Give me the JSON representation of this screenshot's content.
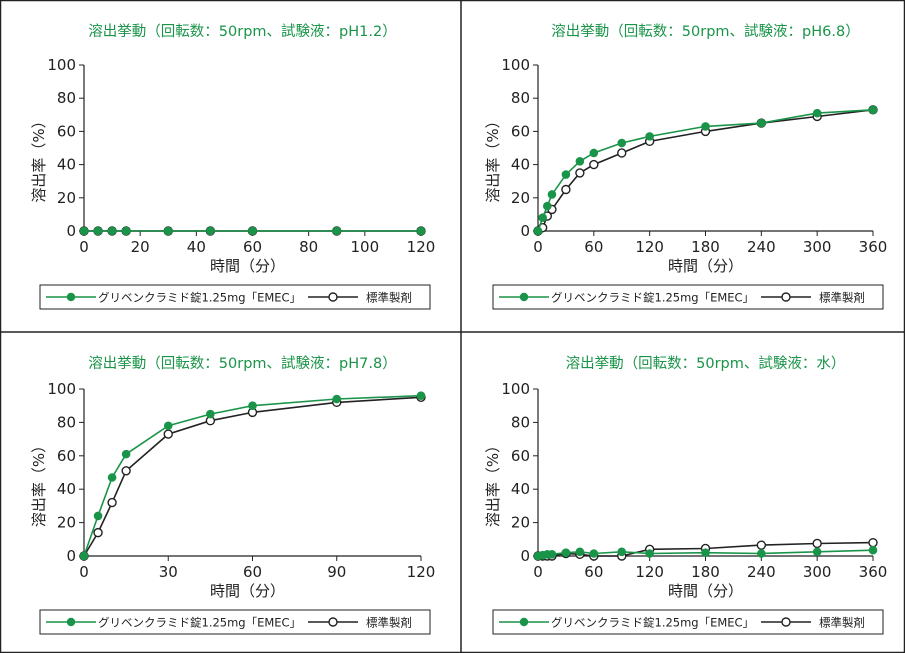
{
  "colors": {
    "test": "#1a9449",
    "reference": "#222222",
    "title": "#1a9449",
    "border": "#222222"
  },
  "legend": {
    "test_label": "グリベンクラミド錠1.25mg「EMEC」",
    "ref_label": "標準製剤"
  },
  "chart_data": [
    {
      "type": "line",
      "title": "溶出挙動（回転数：50rpm、試験液：pH1.2）",
      "xlabel": "時間（分）",
      "ylabel": "溶出率（%）",
      "xlim": [
        0,
        120
      ],
      "ylim": [
        0,
        100
      ],
      "xticks": [
        0,
        20,
        40,
        60,
        80,
        100,
        120
      ],
      "yticks": [
        0,
        20,
        40,
        60,
        80,
        100
      ],
      "legend_position": "bottom",
      "series": [
        {
          "name": "グリベンクラミド錠1.25mg「EMEC」",
          "marker": "filled",
          "x": [
            0,
            5,
            10,
            15,
            30,
            45,
            60,
            90,
            120
          ],
          "y": [
            0,
            0,
            0,
            0,
            0,
            0,
            0,
            0,
            0
          ]
        },
        {
          "name": "標準製剤",
          "marker": "open",
          "x": [
            0,
            5,
            10,
            15,
            30,
            45,
            60,
            90,
            120
          ],
          "y": [
            0,
            0,
            0,
            0,
            0,
            0,
            0,
            0,
            0
          ]
        }
      ]
    },
    {
      "type": "line",
      "title": "溶出挙動（回転数：50rpm、試験液：pH6.8）",
      "xlabel": "時間（分）",
      "ylabel": "溶出率（%）",
      "xlim": [
        0,
        360
      ],
      "ylim": [
        0,
        100
      ],
      "xticks": [
        0,
        60,
        120,
        180,
        240,
        300,
        360
      ],
      "yticks": [
        0,
        20,
        40,
        60,
        80,
        100
      ],
      "legend_position": "bottom",
      "series": [
        {
          "name": "グリベンクラミド錠1.25mg「EMEC」",
          "marker": "filled",
          "x": [
            0,
            5,
            10,
            15,
            30,
            45,
            60,
            90,
            120,
            180,
            240,
            300,
            360
          ],
          "y": [
            0,
            8,
            15,
            22,
            34,
            42,
            47,
            53,
            57,
            63,
            65,
            71,
            73
          ]
        },
        {
          "name": "標準製剤",
          "marker": "open",
          "x": [
            0,
            5,
            10,
            15,
            30,
            45,
            60,
            90,
            120,
            180,
            240,
            300,
            360
          ],
          "y": [
            0,
            2,
            9,
            13,
            25,
            35,
            40,
            47,
            54,
            60,
            65,
            69,
            73
          ]
        }
      ]
    },
    {
      "type": "line",
      "title": "溶出挙動（回転数：50rpm、試験液：pH7.8）",
      "xlabel": "時間（分）",
      "ylabel": "溶出率（%）",
      "xlim": [
        0,
        120
      ],
      "ylim": [
        0,
        100
      ],
      "xticks": [
        0,
        30,
        60,
        90,
        120
      ],
      "yticks": [
        0,
        20,
        40,
        60,
        80,
        100
      ],
      "legend_position": "bottom",
      "series": [
        {
          "name": "グリベンクラミド錠1.25mg「EMEC」",
          "marker": "filled",
          "x": [
            0,
            5,
            10,
            15,
            30,
            45,
            60,
            90,
            120
          ],
          "y": [
            0,
            24,
            47,
            61,
            78,
            85,
            90,
            94,
            96
          ]
        },
        {
          "name": "標準製剤",
          "marker": "open",
          "x": [
            0,
            5,
            10,
            15,
            30,
            45,
            60,
            90,
            120
          ],
          "y": [
            0,
            14,
            32,
            51,
            73,
            81,
            86,
            92,
            95
          ]
        }
      ]
    },
    {
      "type": "line",
      "title": "溶出挙動（回転数：50rpm、試験液：水）",
      "xlabel": "時間（分）",
      "ylabel": "溶出率（%）",
      "xlim": [
        0,
        360
      ],
      "ylim": [
        0,
        100
      ],
      "xticks": [
        0,
        60,
        120,
        180,
        240,
        300,
        360
      ],
      "yticks": [
        0,
        20,
        40,
        60,
        80,
        100
      ],
      "legend_position": "bottom",
      "series": [
        {
          "name": "グリベンクラミド錠1.25mg「EMEC」",
          "marker": "filled",
          "x": [
            0,
            5,
            10,
            15,
            30,
            45,
            60,
            90,
            120,
            180,
            240,
            300,
            360
          ],
          "y": [
            0,
            0.5,
            1,
            1,
            2,
            2.5,
            1.5,
            2.5,
            1.5,
            2,
            1.5,
            2.5,
            3.5
          ]
        },
        {
          "name": "標準製剤",
          "marker": "open",
          "x": [
            0,
            5,
            10,
            15,
            30,
            45,
            60,
            90,
            120,
            180,
            240,
            300,
            360
          ],
          "y": [
            0,
            0,
            0,
            0,
            1.5,
            1,
            0,
            0,
            4,
            4.5,
            6.5,
            7.5,
            8
          ]
        }
      ]
    }
  ]
}
